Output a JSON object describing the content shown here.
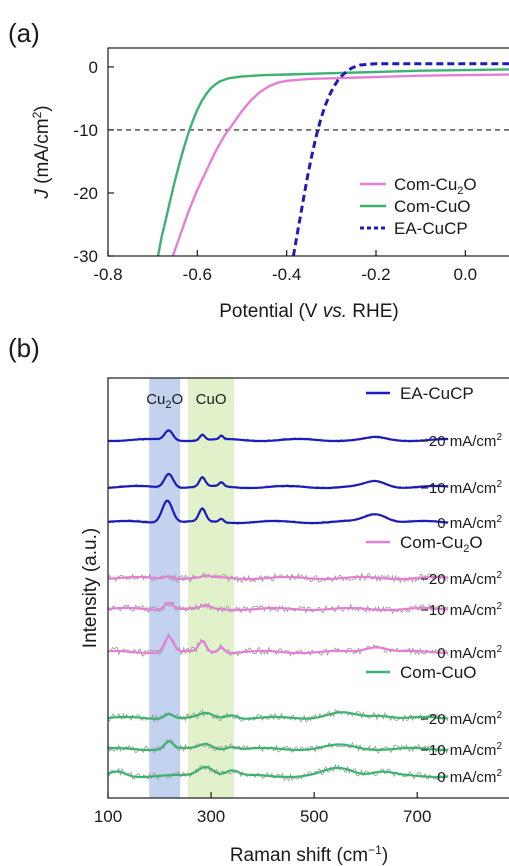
{
  "chart_data": [
    {
      "panel": "(a)",
      "type": "line",
      "xlabel_pre": "Potential (V ",
      "xlabel_ital": "vs.",
      "xlabel_post": " RHE)",
      "ylabel_ital": "J",
      "ylabel_rest": " (mA/cm",
      "ylabel_sup": "2",
      "ylabel_close": ")",
      "xlim": [
        -0.8,
        0.1
      ],
      "ylim": [
        -30,
        3
      ],
      "xticks": [
        -0.8,
        -0.6,
        -0.4,
        -0.2,
        0.0
      ],
      "xtick_labels": [
        "-0.8",
        "-0.6",
        "-0.4",
        "-0.2",
        "0.0"
      ],
      "yticks": [
        0,
        -10,
        -20,
        -30
      ],
      "ytick_labels": [
        "0",
        "-10",
        "-20",
        "-30"
      ],
      "reference_line": {
        "y": -10,
        "style": "dashed"
      },
      "legend_position": "bottom-right",
      "series": [
        {
          "name": "Com-Cu2O",
          "name_base": "Com-Cu",
          "name_sub": "2",
          "name_tail": "O",
          "color": "#e57fd6",
          "style": "solid",
          "x": [
            -0.655,
            -0.64,
            -0.62,
            -0.6,
            -0.58,
            -0.56,
            -0.54,
            -0.52,
            -0.5,
            -0.48,
            -0.46,
            -0.44,
            -0.42,
            -0.4,
            -0.35,
            -0.3,
            -0.2,
            -0.1,
            0.0,
            0.1
          ],
          "y": [
            -30,
            -27,
            -23,
            -19.5,
            -16.5,
            -13.5,
            -11,
            -9,
            -7,
            -5.3,
            -4,
            -3.1,
            -2.5,
            -2.2,
            -1.9,
            -1.8,
            -1.6,
            -1.4,
            -1.3,
            -1.2
          ]
        },
        {
          "name": "Com-CuO",
          "name_base": "Com-CuO",
          "name_sub": "",
          "name_tail": "",
          "color": "#3cb371",
          "style": "solid",
          "x": [
            -0.688,
            -0.68,
            -0.67,
            -0.66,
            -0.65,
            -0.64,
            -0.63,
            -0.62,
            -0.61,
            -0.6,
            -0.59,
            -0.58,
            -0.57,
            -0.56,
            -0.55,
            -0.53,
            -0.5,
            -0.45,
            -0.4,
            -0.3,
            -0.2,
            -0.1,
            0.0,
            0.1
          ],
          "y": [
            -30,
            -27,
            -24,
            -21,
            -18,
            -15.3,
            -12.8,
            -10.5,
            -8.5,
            -6.8,
            -5.4,
            -4.3,
            -3.4,
            -2.8,
            -2.3,
            -1.8,
            -1.5,
            -1.3,
            -1.2,
            -1.0,
            -0.8,
            -0.6,
            -0.5,
            -0.4
          ]
        },
        {
          "name": "EA-CuCP",
          "name_base": "EA-CuCP",
          "name_sub": "",
          "name_tail": "",
          "color": "#1c1cb8",
          "style": "dashed",
          "x": [
            -0.385,
            -0.375,
            -0.365,
            -0.355,
            -0.345,
            -0.335,
            -0.325,
            -0.315,
            -0.305,
            -0.295,
            -0.285,
            -0.275,
            -0.265,
            -0.255,
            -0.245,
            -0.235,
            -0.22,
            -0.2,
            -0.17,
            -0.1,
            0.0,
            0.1
          ],
          "y": [
            -30,
            -26,
            -22,
            -18,
            -14.5,
            -11.3,
            -8.6,
            -6.4,
            -4.6,
            -3.2,
            -2.1,
            -1.3,
            -0.7,
            -0.2,
            0.1,
            0.3,
            0.4,
            0.5,
            0.5,
            0.5,
            0.5,
            0.5
          ]
        }
      ]
    },
    {
      "panel": "(b)",
      "type": "line",
      "xlabel_pre": "Raman shift (cm",
      "xlabel_sup": "−1",
      "xlabel_post": ")",
      "ylabel": "Intensity (a.u.)",
      "xlim": [
        100,
        880
      ],
      "xticks": [
        100,
        300,
        500,
        700
      ],
      "xtick_labels": [
        "100",
        "300",
        "500",
        "700"
      ],
      "bands": [
        {
          "label_base": "Cu",
          "label_sub": "2",
          "label_tail": "O",
          "from": 180,
          "to": 240,
          "color": "#a9bfe8"
        },
        {
          "label_base": "CuO",
          "label_sub": "",
          "label_tail": "",
          "from": 255,
          "to": 345,
          "color": "#d4ecb4"
        }
      ],
      "x_end": 760,
      "groups": [
        {
          "name_base": "EA-CuCP",
          "name_sub": "",
          "name_tail": "",
          "color": "#1c1cb8",
          "traces": [
            {
              "label_pre": "−20 mA/cm",
              "label_sup": "2",
              "peaks": [
                [
                  218,
                  14,
                  11
                ],
                [
                  283,
                  8,
                  7
                ],
                [
                  320,
                  5,
                  5
                ],
                [
                  620,
                  3,
                  25
                ]
              ]
            },
            {
              "label_pre": "−10 mA/cm",
              "label_sup": "2",
              "peaks": [
                [
                  218,
                  20,
                  12
                ],
                [
                  283,
                  13,
                  8
                ],
                [
                  320,
                  6,
                  6
                ],
                [
                  620,
                  8,
                  28
                ]
              ]
            },
            {
              "label_pre": "0 mA/cm",
              "label_sup": "2",
              "peaks": [
                [
                  215,
                  32,
                  14
                ],
                [
                  283,
                  18,
                  9
                ],
                [
                  320,
                  5,
                  6
                ],
                [
                  620,
                  12,
                  30
                ]
              ]
            }
          ]
        },
        {
          "name_base": "Com-Cu",
          "name_sub": "2",
          "name_tail": "O",
          "color": "#e57fd6",
          "traces": [
            {
              "label_pre": "−20 mA/cm",
              "label_sup": "2",
              "peaks": [
                [
                  218,
                  4,
                  10
                ],
                [
                  290,
                  2,
                  10
                ]
              ]
            },
            {
              "label_pre": "−10 mA/cm",
              "label_sup": "2",
              "peaks": [
                [
                  218,
                  10,
                  12
                ],
                [
                  290,
                  4,
                  12
                ]
              ]
            },
            {
              "label_pre": "0 mA/cm",
              "label_sup": "2",
              "peaks": [
                [
                  218,
                  22,
                  12
                ],
                [
                  283,
                  15,
                  10
                ],
                [
                  320,
                  8,
                  8
                ],
                [
                  620,
                  8,
                  30
                ]
              ]
            }
          ]
        },
        {
          "name_base": "Com-CuO",
          "name_sub": "",
          "name_tail": "",
          "color": "#3cb371",
          "traces": [
            {
              "label_pre": "−20 mA/cm",
              "label_sup": "2",
              "peaks": [
                [
                  218,
                  7,
                  12
                ],
                [
                  290,
                  6,
                  18
                ],
                [
                  340,
                  5,
                  15
                ],
                [
                  550,
                  7,
                  40
                ],
                [
                  630,
                  4,
                  30
                ]
              ]
            },
            {
              "label_pre": "−10 mA/cm",
              "label_sup": "2",
              "peaks": [
                [
                  218,
                  11,
                  12
                ],
                [
                  290,
                  7,
                  18
                ],
                [
                  340,
                  4,
                  15
                ],
                [
                  550,
                  5,
                  40
                ]
              ]
            },
            {
              "label_pre": "0 mA/cm",
              "label_sup": "2",
              "peaks": [
                [
                  120,
                  6,
                  20
                ],
                [
                  290,
                  14,
                  22
                ],
                [
                  340,
                  8,
                  18
                ],
                [
                  550,
                  11,
                  40
                ],
                [
                  630,
                  6,
                  30
                ]
              ]
            }
          ]
        }
      ]
    }
  ]
}
